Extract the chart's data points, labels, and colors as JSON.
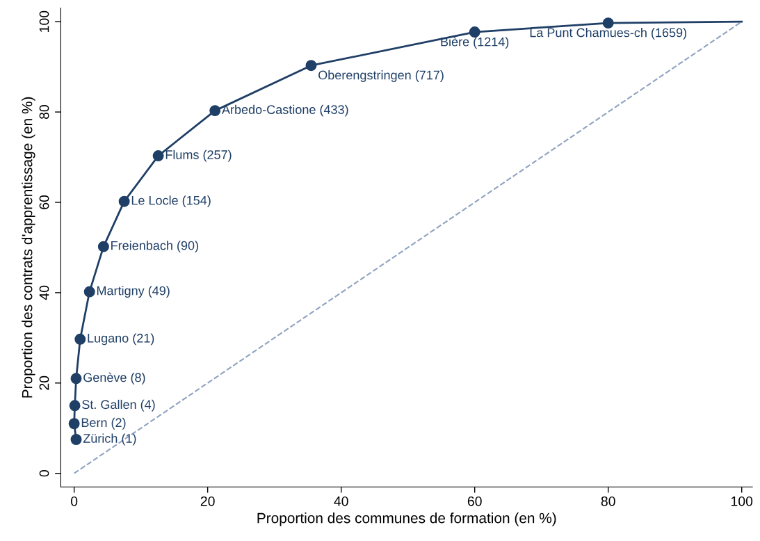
{
  "chart_data": {
    "type": "scatter",
    "xlabel": "Proportion des communes de formation (en %)",
    "ylabel": "Proportion des contrats d'apprentissage (en %)",
    "xlim": [
      -2,
      101.6
    ],
    "ylim": [
      -3,
      103
    ],
    "xticks": [
      0,
      20,
      40,
      60,
      80,
      100
    ],
    "yticks": [
      0,
      20,
      40,
      60,
      80,
      100
    ],
    "grid": false,
    "series": [
      {
        "type": "line",
        "color": "#8fa3c0",
        "line_style": "dashed",
        "marker": "none",
        "x": [
          0,
          100
        ],
        "values": [
          0,
          100
        ]
      },
      {
        "type": "line",
        "color": "#1f3f66",
        "line_style": "solid",
        "marker": "none",
        "x": [
          0.3,
          0,
          0.1,
          0.3,
          0.9,
          2.3,
          4.4,
          7.5,
          12.6,
          21.1,
          35.5,
          60,
          80,
          100
        ],
        "values": [
          7.5,
          11,
          15,
          21,
          29.7,
          40.2,
          50.2,
          60.2,
          70.3,
          80.3,
          90.3,
          97.7,
          99.7,
          100
        ]
      },
      {
        "color": "#1f3f66",
        "marker": "circle",
        "x": [
          0.3,
          0,
          0.1,
          0.3,
          0.9,
          2.3,
          4.4,
          7.5,
          12.6,
          21.1,
          35.5,
          60,
          80
        ],
        "values": [
          7.5,
          11,
          15,
          21,
          29.7,
          40.2,
          50.2,
          60.2,
          70.3,
          80.3,
          90.3,
          97.7,
          99.7
        ]
      }
    ],
    "annotations": [
      {
        "text": "Zürich (1)",
        "x": 0.3,
        "y": 7.5
      },
      {
        "text": "Bern (2)",
        "x": 0,
        "y": 11
      },
      {
        "text": "St. Gallen (4)",
        "x": 0.1,
        "y": 15
      },
      {
        "text": "Genève (8)",
        "x": 0.3,
        "y": 21
      },
      {
        "text": "Lugano (21)",
        "x": 0.9,
        "y": 29.7
      },
      {
        "text": "Martigny (49)",
        "x": 2.3,
        "y": 40.2
      },
      {
        "text": "Freienbach (90)",
        "x": 4.4,
        "y": 50.2
      },
      {
        "text": "Le Locle (154)",
        "x": 7.5,
        "y": 60.2
      },
      {
        "text": "Flums (257)",
        "x": 12.6,
        "y": 70.3
      },
      {
        "text": "Arbedo-Castione (433)",
        "x": 21.1,
        "y": 80.3
      },
      {
        "text": "Oberengstringen (717)",
        "x": 35.5,
        "y": 90.3
      },
      {
        "text": "Bière (1214)",
        "x": 60,
        "y": 97.7
      },
      {
        "text": "La Punt Chamues-ch (1659)",
        "x": 80,
        "y": 99.7
      }
    ]
  }
}
